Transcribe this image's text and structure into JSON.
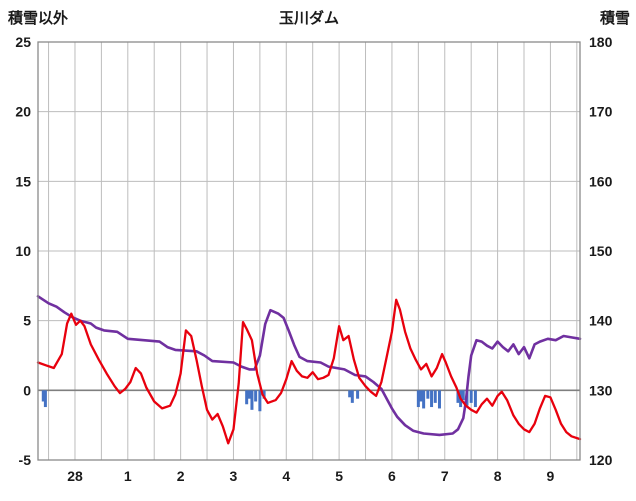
{
  "chart_data": {
    "type": "line",
    "title": "玉川ダム",
    "left_axis": {
      "label": "積雪以外",
      "min": -5,
      "max": 25,
      "ticks": [
        -5,
        0,
        5,
        10,
        15,
        20,
        25
      ],
      "zero_line": 0
    },
    "right_axis": {
      "label": "積雪",
      "min": 120,
      "max": 180,
      "ticks": [
        120,
        130,
        140,
        150,
        160,
        170,
        180
      ]
    },
    "x_axis": {
      "min": 0,
      "max": 10.26,
      "tick_labels": [
        "28",
        "1",
        "2",
        "3",
        "4",
        "5",
        "6",
        "7",
        "8",
        "9"
      ],
      "tick_positions": [
        0.7,
        1.7,
        2.7,
        3.7,
        4.7,
        5.7,
        6.7,
        7.7,
        8.7,
        9.7
      ],
      "grid_start": 0.2,
      "grid_interval": 0.5,
      "grid": true
    },
    "colors": {
      "red_line": "#e8000d",
      "purple_line": "#7030a0",
      "blue_bars": "#4472c4",
      "grid": "#bdbdbd",
      "zero_line": "#7f7f7f",
      "frame": "#8a8a8a"
    },
    "series": [
      {
        "name": "blue-bars",
        "axis": "left",
        "kind": "bar",
        "color": "#4472c4",
        "points": [
          [
            0.1,
            -0.8
          ],
          [
            0.14,
            -1.2
          ],
          [
            3.95,
            -1.0
          ],
          [
            4.0,
            -0.6
          ],
          [
            4.05,
            -1.4
          ],
          [
            4.12,
            -0.8
          ],
          [
            4.2,
            -1.5
          ],
          [
            4.28,
            -0.6
          ],
          [
            5.9,
            -0.5
          ],
          [
            5.95,
            -0.9
          ],
          [
            6.05,
            -0.6
          ],
          [
            7.2,
            -1.2
          ],
          [
            7.25,
            -0.8
          ],
          [
            7.3,
            -1.3
          ],
          [
            7.38,
            -0.6
          ],
          [
            7.45,
            -1.2
          ],
          [
            7.52,
            -0.9
          ],
          [
            7.6,
            -1.3
          ],
          [
            7.95,
            -0.9
          ],
          [
            8.0,
            -1.2
          ],
          [
            8.05,
            -0.7
          ],
          [
            8.12,
            -1.1
          ],
          [
            8.2,
            -0.9
          ],
          [
            8.28,
            -1.2
          ]
        ]
      },
      {
        "name": "right-axis-purple-line",
        "axis": "right",
        "kind": "line",
        "color": "#7030a0",
        "width": 2.6,
        "points": [
          [
            0,
            143.5
          ],
          [
            0.1,
            143.0
          ],
          [
            0.2,
            142.5
          ],
          [
            0.35,
            142.0
          ],
          [
            0.5,
            141.2
          ],
          [
            0.65,
            140.5
          ],
          [
            0.8,
            140.0
          ],
          [
            1.0,
            139.6
          ],
          [
            1.1,
            139.0
          ],
          [
            1.25,
            138.6
          ],
          [
            1.5,
            138.4
          ],
          [
            1.7,
            137.4
          ],
          [
            2.0,
            137.2
          ],
          [
            2.3,
            137.0
          ],
          [
            2.45,
            136.2
          ],
          [
            2.6,
            135.8
          ],
          [
            3.0,
            135.6
          ],
          [
            3.15,
            135.0
          ],
          [
            3.3,
            134.2
          ],
          [
            3.7,
            134.0
          ],
          [
            3.85,
            133.4
          ],
          [
            4.0,
            133.0
          ],
          [
            4.1,
            133.0
          ],
          [
            4.2,
            135.0
          ],
          [
            4.3,
            139.5
          ],
          [
            4.4,
            141.5
          ],
          [
            4.55,
            141.0
          ],
          [
            4.65,
            140.4
          ],
          [
            4.75,
            138.5
          ],
          [
            4.85,
            136.5
          ],
          [
            4.95,
            134.8
          ],
          [
            5.1,
            134.2
          ],
          [
            5.35,
            134.0
          ],
          [
            5.5,
            133.4
          ],
          [
            5.8,
            133.0
          ],
          [
            6.0,
            132.2
          ],
          [
            6.2,
            132.0
          ],
          [
            6.35,
            131.2
          ],
          [
            6.5,
            130.2
          ],
          [
            6.6,
            128.8
          ],
          [
            6.7,
            127.4
          ],
          [
            6.8,
            126.2
          ],
          [
            6.95,
            125.0
          ],
          [
            7.1,
            124.2
          ],
          [
            7.3,
            123.8
          ],
          [
            7.6,
            123.6
          ],
          [
            7.85,
            123.8
          ],
          [
            7.95,
            124.4
          ],
          [
            8.05,
            126.0
          ],
          [
            8.1,
            128.5
          ],
          [
            8.15,
            132.0
          ],
          [
            8.2,
            135.0
          ],
          [
            8.3,
            137.2
          ],
          [
            8.4,
            137.0
          ],
          [
            8.5,
            136.4
          ],
          [
            8.6,
            136.0
          ],
          [
            8.7,
            137.0
          ],
          [
            8.8,
            136.2
          ],
          [
            8.9,
            135.6
          ],
          [
            9.0,
            136.6
          ],
          [
            9.1,
            135.2
          ],
          [
            9.2,
            136.2
          ],
          [
            9.3,
            134.6
          ],
          [
            9.4,
            136.6
          ],
          [
            9.5,
            137.0
          ],
          [
            9.65,
            137.4
          ],
          [
            9.8,
            137.2
          ],
          [
            9.95,
            137.8
          ],
          [
            10.1,
            137.6
          ],
          [
            10.26,
            137.4
          ]
        ]
      },
      {
        "name": "left-axis-red-line",
        "axis": "left",
        "kind": "line",
        "color": "#e8000d",
        "width": 2.3,
        "points": [
          [
            0,
            2.0
          ],
          [
            0.15,
            1.8
          ],
          [
            0.3,
            1.6
          ],
          [
            0.45,
            2.6
          ],
          [
            0.55,
            4.8
          ],
          [
            0.63,
            5.5
          ],
          [
            0.72,
            4.7
          ],
          [
            0.8,
            5.0
          ],
          [
            0.88,
            4.6
          ],
          [
            1.0,
            3.3
          ],
          [
            1.15,
            2.2
          ],
          [
            1.3,
            1.2
          ],
          [
            1.45,
            0.3
          ],
          [
            1.55,
            -0.2
          ],
          [
            1.65,
            0.1
          ],
          [
            1.75,
            0.6
          ],
          [
            1.85,
            1.6
          ],
          [
            1.95,
            1.2
          ],
          [
            2.05,
            0.2
          ],
          [
            2.2,
            -0.8
          ],
          [
            2.35,
            -1.3
          ],
          [
            2.5,
            -1.1
          ],
          [
            2.6,
            -0.3
          ],
          [
            2.7,
            1.2
          ],
          [
            2.8,
            4.3
          ],
          [
            2.9,
            3.9
          ],
          [
            3.0,
            2.2
          ],
          [
            3.1,
            0.3
          ],
          [
            3.2,
            -1.4
          ],
          [
            3.3,
            -2.1
          ],
          [
            3.4,
            -1.7
          ],
          [
            3.5,
            -2.6
          ],
          [
            3.6,
            -3.8
          ],
          [
            3.7,
            -2.8
          ],
          [
            3.8,
            0.5
          ],
          [
            3.88,
            4.9
          ],
          [
            3.95,
            4.4
          ],
          [
            4.05,
            3.6
          ],
          [
            4.15,
            1.2
          ],
          [
            4.25,
            -0.3
          ],
          [
            4.35,
            -0.9
          ],
          [
            4.5,
            -0.7
          ],
          [
            4.6,
            -0.2
          ],
          [
            4.7,
            0.8
          ],
          [
            4.8,
            2.1
          ],
          [
            4.9,
            1.4
          ],
          [
            5.0,
            1.0
          ],
          [
            5.1,
            0.9
          ],
          [
            5.2,
            1.3
          ],
          [
            5.3,
            0.8
          ],
          [
            5.4,
            0.9
          ],
          [
            5.5,
            1.1
          ],
          [
            5.6,
            2.3
          ],
          [
            5.7,
            4.6
          ],
          [
            5.78,
            3.6
          ],
          [
            5.88,
            3.9
          ],
          [
            5.98,
            2.2
          ],
          [
            6.08,
            0.9
          ],
          [
            6.2,
            0.3
          ],
          [
            6.3,
            -0.1
          ],
          [
            6.4,
            -0.4
          ],
          [
            6.5,
            0.6
          ],
          [
            6.6,
            2.4
          ],
          [
            6.7,
            4.2
          ],
          [
            6.78,
            6.5
          ],
          [
            6.85,
            5.8
          ],
          [
            6.95,
            4.2
          ],
          [
            7.05,
            3.0
          ],
          [
            7.15,
            2.2
          ],
          [
            7.25,
            1.5
          ],
          [
            7.35,
            1.9
          ],
          [
            7.45,
            1.0
          ],
          [
            7.55,
            1.6
          ],
          [
            7.65,
            2.6
          ],
          [
            7.72,
            2.0
          ],
          [
            7.82,
            1.0
          ],
          [
            7.92,
            0.2
          ],
          [
            8.0,
            -0.6
          ],
          [
            8.1,
            -1.1
          ],
          [
            8.2,
            -1.4
          ],
          [
            8.3,
            -1.6
          ],
          [
            8.4,
            -1.0
          ],
          [
            8.5,
            -0.6
          ],
          [
            8.6,
            -1.1
          ],
          [
            8.7,
            -0.4
          ],
          [
            8.78,
            -0.1
          ],
          [
            8.88,
            -0.7
          ],
          [
            9.0,
            -1.8
          ],
          [
            9.1,
            -2.4
          ],
          [
            9.2,
            -2.8
          ],
          [
            9.3,
            -3.0
          ],
          [
            9.4,
            -2.4
          ],
          [
            9.5,
            -1.3
          ],
          [
            9.6,
            -0.4
          ],
          [
            9.7,
            -0.5
          ],
          [
            9.8,
            -1.4
          ],
          [
            9.9,
            -2.4
          ],
          [
            10.0,
            -3.0
          ],
          [
            10.1,
            -3.3
          ],
          [
            10.26,
            -3.5
          ]
        ]
      }
    ]
  }
}
